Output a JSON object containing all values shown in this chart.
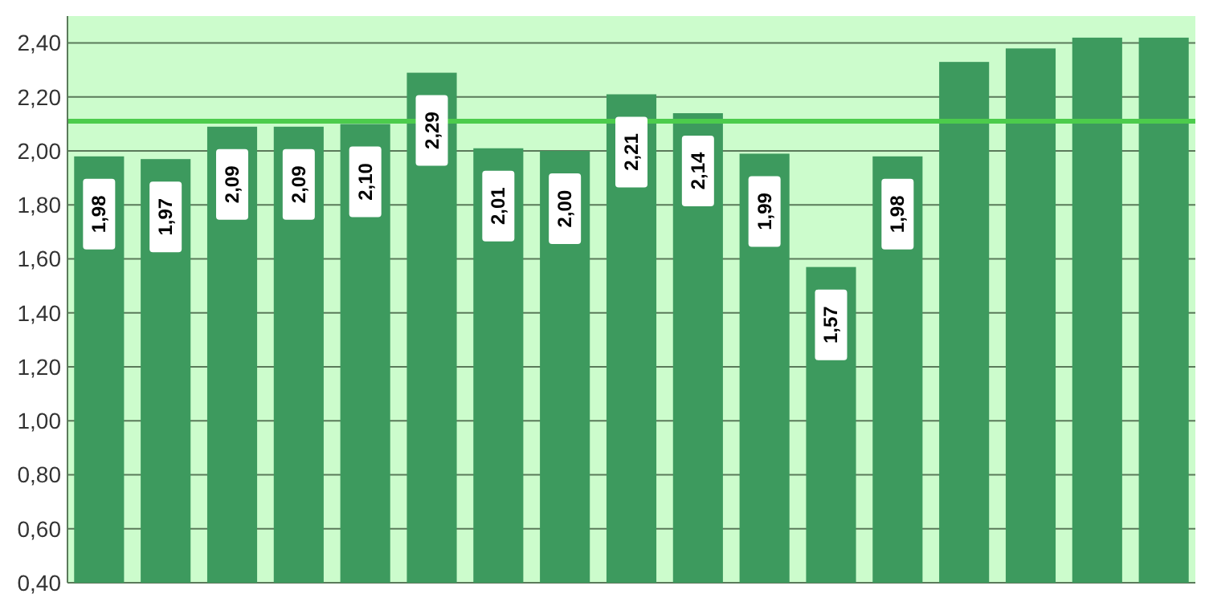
{
  "chart_data": {
    "type": "bar",
    "categories": [
      null,
      null,
      null,
      null,
      null,
      null,
      null,
      null,
      null,
      null,
      null,
      null,
      null,
      null,
      null,
      null,
      null
    ],
    "values": [
      1.98,
      1.97,
      2.09,
      2.09,
      2.1,
      2.29,
      2.01,
      2.0,
      2.21,
      2.14,
      1.99,
      1.57,
      1.98,
      2.33,
      2.38,
      2.42,
      2.42
    ],
    "value_labels": [
      "1,98",
      "1,97",
      "2,09",
      "2,09",
      "2,10",
      "2,29",
      "2,01",
      "2,00",
      "2,21",
      "2,14",
      "1,99",
      "1,57",
      "1,98",
      null,
      null,
      null,
      null
    ],
    "color": "#3d9a5e",
    "ylim": [
      0.4,
      2.5
    ],
    "yticks": [
      {
        "value": 0.4,
        "label": "0,40"
      },
      {
        "value": 0.6,
        "label": "0,60"
      },
      {
        "value": 0.8,
        "label": "0,80"
      },
      {
        "value": 1.0,
        "label": "1,00"
      },
      {
        "value": 1.2,
        "label": "1,20"
      },
      {
        "value": 1.4,
        "label": "1,40"
      },
      {
        "value": 1.6,
        "label": "1,60"
      },
      {
        "value": 1.8,
        "label": "1,80"
      },
      {
        "value": 2.0,
        "label": "2,00"
      },
      {
        "value": 2.2,
        "label": "2,20"
      },
      {
        "value": 2.4,
        "label": "2,40"
      }
    ],
    "grid": "y",
    "ref_lines": [
      {
        "axis": "y",
        "value": 2.11,
        "color": "#4ccc4c"
      }
    ]
  }
}
